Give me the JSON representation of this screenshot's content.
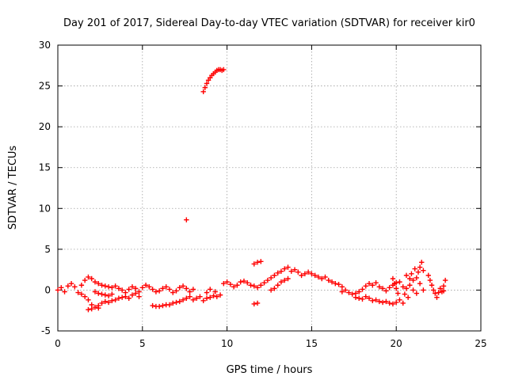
{
  "chart_data": {
    "type": "scatter",
    "title": "Day 201 of 2017, Sidereal Day-to-day VTEC variation (SDTVAR) for receiver kir0",
    "xlabel": "GPS time / hours",
    "ylabel": "SDTVAR / TECUs",
    "xlim": [
      0,
      25
    ],
    "ylim": [
      -5,
      30
    ],
    "xticks": [
      0,
      5,
      10,
      15,
      20,
      25
    ],
    "yticks": [
      -5,
      0,
      5,
      10,
      15,
      20,
      25,
      30
    ],
    "grid": true,
    "marker": "+",
    "color": "#ff0000",
    "series": [
      {
        "name": "SDTVAR",
        "points": [
          [
            0.0,
            0.0
          ],
          [
            0.2,
            0.3
          ],
          [
            0.4,
            -0.2
          ],
          [
            0.6,
            0.5
          ],
          [
            0.8,
            0.8
          ],
          [
            1.0,
            0.4
          ],
          [
            1.2,
            -0.3
          ],
          [
            1.4,
            0.6
          ],
          [
            1.6,
            1.2
          ],
          [
            1.8,
            1.6
          ],
          [
            2.0,
            1.4
          ],
          [
            2.2,
            1.0
          ],
          [
            2.4,
            0.8
          ],
          [
            2.6,
            0.6
          ],
          [
            2.8,
            0.5
          ],
          [
            3.0,
            0.4
          ],
          [
            3.2,
            0.3
          ],
          [
            3.4,
            0.5
          ],
          [
            3.6,
            0.2
          ],
          [
            3.8,
            0.0
          ],
          [
            4.0,
            -0.3
          ],
          [
            4.2,
            0.1
          ],
          [
            4.4,
            0.4
          ],
          [
            4.6,
            0.2
          ],
          [
            4.8,
            -0.2
          ],
          [
            5.0,
            0.3
          ],
          [
            5.2,
            0.6
          ],
          [
            5.4,
            0.4
          ],
          [
            5.6,
            0.1
          ],
          [
            5.8,
            -0.2
          ],
          [
            6.0,
            -0.1
          ],
          [
            6.2,
            0.2
          ],
          [
            6.4,
            0.4
          ],
          [
            6.6,
            0.1
          ],
          [
            6.8,
            -0.3
          ],
          [
            7.0,
            -0.1
          ],
          [
            7.2,
            0.3
          ],
          [
            7.4,
            0.5
          ],
          [
            7.6,
            0.2
          ],
          [
            7.8,
            -0.2
          ],
          [
            8.0,
            0.1
          ],
          [
            1.4,
            -0.5
          ],
          [
            1.6,
            -0.8
          ],
          [
            1.8,
            -1.2
          ],
          [
            2.0,
            -1.8
          ],
          [
            2.2,
            -2.1
          ],
          [
            2.4,
            -1.9
          ],
          [
            2.6,
            -1.6
          ],
          [
            2.8,
            -1.4
          ],
          [
            3.0,
            -1.5
          ],
          [
            3.2,
            -1.3
          ],
          [
            3.4,
            -1.2
          ],
          [
            3.6,
            -1.0
          ],
          [
            3.8,
            -0.9
          ],
          [
            4.0,
            -0.8
          ],
          [
            4.2,
            -1.0
          ],
          [
            4.4,
            -0.6
          ],
          [
            4.6,
            -0.4
          ],
          [
            4.8,
            -0.8
          ],
          [
            1.8,
            -2.4
          ],
          [
            2.0,
            -2.3
          ],
          [
            2.4,
            -2.2
          ],
          [
            2.2,
            -0.2
          ],
          [
            2.4,
            -0.4
          ],
          [
            2.6,
            -0.5
          ],
          [
            2.8,
            -0.6
          ],
          [
            3.0,
            -0.7
          ],
          [
            3.2,
            -0.5
          ],
          [
            5.6,
            -1.9
          ],
          [
            5.8,
            -2.0
          ],
          [
            6.0,
            -2.0
          ],
          [
            6.2,
            -1.9
          ],
          [
            6.4,
            -1.8
          ],
          [
            6.6,
            -1.8
          ],
          [
            6.8,
            -1.6
          ],
          [
            7.0,
            -1.5
          ],
          [
            7.2,
            -1.4
          ],
          [
            7.4,
            -1.2
          ],
          [
            7.6,
            -1.0
          ],
          [
            7.8,
            -0.8
          ],
          [
            8.0,
            -1.2
          ],
          [
            8.2,
            -1.0
          ],
          [
            8.4,
            -0.8
          ],
          [
            8.6,
            -1.3
          ],
          [
            8.8,
            -1.0
          ],
          [
            9.0,
            -0.9
          ],
          [
            9.2,
            -0.7
          ],
          [
            9.4,
            -0.8
          ],
          [
            9.6,
            -0.6
          ],
          [
            8.8,
            -0.3
          ],
          [
            9.0,
            0.1
          ],
          [
            9.3,
            -0.2
          ],
          [
            7.6,
            8.6
          ],
          [
            8.6,
            24.3
          ],
          [
            8.7,
            24.8
          ],
          [
            8.8,
            25.3
          ],
          [
            8.9,
            25.7
          ],
          [
            9.0,
            26.0
          ],
          [
            9.1,
            26.3
          ],
          [
            9.2,
            26.5
          ],
          [
            9.3,
            26.7
          ],
          [
            9.4,
            26.9
          ],
          [
            9.5,
            27.0
          ],
          [
            9.6,
            27.0
          ],
          [
            9.7,
            26.9
          ],
          [
            9.8,
            27.0
          ],
          [
            9.8,
            0.8
          ],
          [
            10.0,
            1.0
          ],
          [
            10.2,
            0.7
          ],
          [
            10.4,
            0.4
          ],
          [
            10.6,
            0.6
          ],
          [
            10.8,
            1.0
          ],
          [
            11.0,
            1.1
          ],
          [
            11.2,
            0.9
          ],
          [
            11.4,
            0.6
          ],
          [
            11.6,
            0.5
          ],
          [
            11.8,
            0.3
          ],
          [
            12.0,
            0.6
          ],
          [
            12.2,
            0.9
          ],
          [
            12.4,
            1.2
          ],
          [
            12.6,
            1.5
          ],
          [
            12.8,
            1.8
          ],
          [
            13.0,
            2.1
          ],
          [
            13.2,
            2.3
          ],
          [
            13.4,
            2.6
          ],
          [
            13.6,
            2.8
          ],
          [
            13.8,
            2.3
          ],
          [
            14.0,
            2.5
          ],
          [
            14.2,
            2.2
          ],
          [
            14.4,
            1.8
          ],
          [
            14.6,
            2.0
          ],
          [
            14.8,
            2.2
          ],
          [
            15.0,
            2.0
          ],
          [
            15.2,
            1.8
          ],
          [
            15.4,
            1.6
          ],
          [
            15.6,
            1.4
          ],
          [
            15.8,
            1.6
          ],
          [
            16.0,
            1.2
          ],
          [
            16.2,
            1.0
          ],
          [
            16.4,
            0.8
          ],
          [
            16.6,
            0.7
          ],
          [
            16.8,
            0.4
          ],
          [
            12.6,
            0.0
          ],
          [
            12.8,
            0.2
          ],
          [
            13.0,
            0.6
          ],
          [
            13.2,
            1.0
          ],
          [
            13.4,
            1.2
          ],
          [
            13.6,
            1.4
          ],
          [
            11.6,
            3.2
          ],
          [
            11.8,
            3.4
          ],
          [
            12.0,
            3.5
          ],
          [
            11.8,
            -1.6
          ],
          [
            11.6,
            -1.7
          ],
          [
            16.8,
            -0.2
          ],
          [
            17.0,
            0.0
          ],
          [
            17.2,
            -0.3
          ],
          [
            17.4,
            -0.5
          ],
          [
            17.6,
            -0.4
          ],
          [
            17.8,
            -0.2
          ],
          [
            18.0,
            0.1
          ],
          [
            18.2,
            0.5
          ],
          [
            18.4,
            0.8
          ],
          [
            18.6,
            0.6
          ],
          [
            18.8,
            0.9
          ],
          [
            19.0,
            0.4
          ],
          [
            19.2,
            0.2
          ],
          [
            19.4,
            -0.1
          ],
          [
            19.6,
            0.3
          ],
          [
            19.8,
            0.6
          ],
          [
            20.0,
            0.9
          ],
          [
            17.6,
            -0.9
          ],
          [
            17.8,
            -1.0
          ],
          [
            18.0,
            -1.1
          ],
          [
            18.2,
            -0.8
          ],
          [
            18.4,
            -1.0
          ],
          [
            18.6,
            -1.3
          ],
          [
            18.8,
            -1.2
          ],
          [
            19.0,
            -1.4
          ],
          [
            19.2,
            -1.5
          ],
          [
            19.4,
            -1.4
          ],
          [
            19.6,
            -1.6
          ],
          [
            19.8,
            -1.7
          ],
          [
            20.0,
            -1.5
          ],
          [
            20.2,
            -1.2
          ],
          [
            20.4,
            -1.6
          ],
          [
            19.8,
            1.4
          ],
          [
            19.9,
            0.8
          ],
          [
            20.0,
            0.2
          ],
          [
            20.1,
            -0.4
          ],
          [
            20.2,
            1.0
          ],
          [
            20.4,
            0.4
          ],
          [
            20.5,
            -0.5
          ],
          [
            20.6,
            1.8
          ],
          [
            20.6,
            0.2
          ],
          [
            20.7,
            -0.9
          ],
          [
            20.8,
            1.4
          ],
          [
            20.8,
            0.6
          ],
          [
            20.9,
            2.0
          ],
          [
            21.0,
            1.2
          ],
          [
            21.0,
            0.0
          ],
          [
            21.1,
            2.6
          ],
          [
            21.2,
            1.5
          ],
          [
            21.2,
            -0.4
          ],
          [
            21.3,
            2.2
          ],
          [
            21.4,
            2.8
          ],
          [
            21.4,
            0.8
          ],
          [
            21.5,
            3.4
          ],
          [
            21.6,
            2.4
          ],
          [
            21.6,
            0.0
          ],
          [
            21.9,
            1.8
          ],
          [
            22.0,
            1.2
          ],
          [
            22.1,
            0.6
          ],
          [
            22.2,
            0.0
          ],
          [
            22.3,
            -0.4
          ],
          [
            22.4,
            -0.9
          ],
          [
            22.5,
            -0.3
          ],
          [
            22.6,
            0.2
          ],
          [
            22.7,
            -0.2
          ],
          [
            22.8,
            0.5
          ],
          [
            22.9,
            1.2
          ],
          [
            22.8,
            -0.1
          ]
        ]
      }
    ]
  }
}
